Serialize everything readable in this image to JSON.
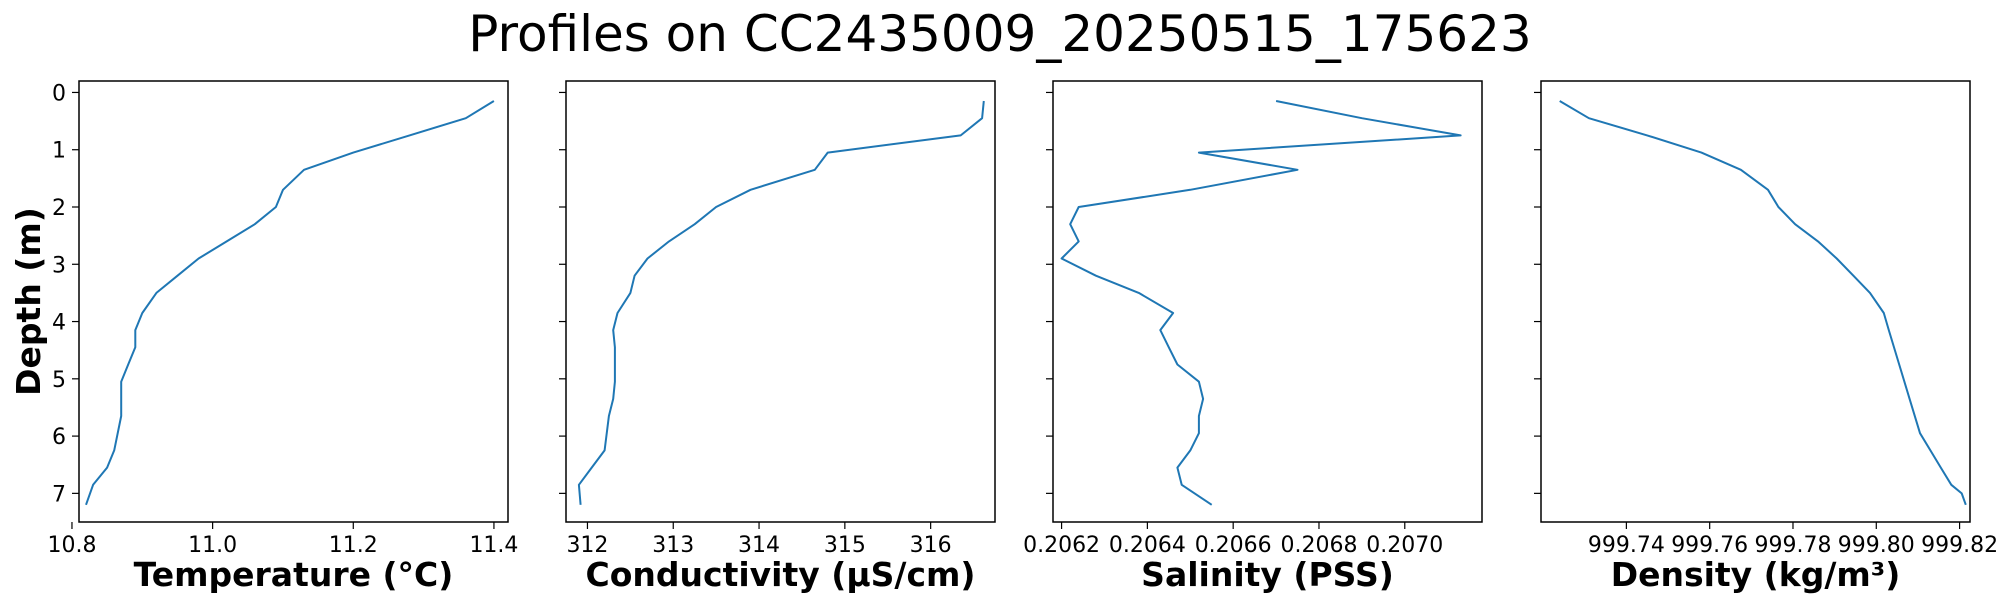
{
  "title": "Profiles on CC2435009_20250515_175623",
  "line_color": "#1f77b4",
  "chart_data": [
    {
      "type": "line",
      "xlabel": "Temperature (°C)",
      "ylabel": "Depth (m)",
      "xlim": [
        10.81,
        11.42
      ],
      "ylim": [
        7.5,
        -0.2
      ],
      "xticks": [
        "10.8",
        "11.0",
        "11.2",
        "11.4"
      ],
      "xtick_values": [
        10.8,
        11.0,
        11.2,
        11.4
      ],
      "yticks": [
        "0",
        "1",
        "2",
        "3",
        "4",
        "5",
        "6",
        "7"
      ],
      "yinvert": true,
      "series": [
        {
          "x": [
            11.4,
            11.36,
            11.28,
            11.2,
            11.13,
            11.1,
            11.09,
            11.06,
            11.02,
            10.98,
            10.95,
            10.92,
            10.9,
            10.89,
            10.89,
            10.88,
            10.87,
            10.87,
            10.86,
            10.85,
            10.83,
            10.82
          ],
          "y": [
            0.15,
            0.45,
            0.75,
            1.05,
            1.35,
            1.7,
            2.0,
            2.3,
            2.6,
            2.9,
            3.2,
            3.5,
            3.85,
            4.15,
            4.45,
            4.75,
            5.05,
            5.65,
            6.25,
            6.55,
            6.85,
            7.2
          ]
        }
      ]
    },
    {
      "type": "line",
      "xlabel": "Conductivity (µS/cm)",
      "ylabel": "",
      "xlim": [
        311.75,
        316.75
      ],
      "ylim": [
        7.5,
        -0.2
      ],
      "xticks": [
        "312",
        "313",
        "314",
        "315",
        "316"
      ],
      "xtick_values": [
        312,
        313,
        314,
        315,
        316
      ],
      "yinvert": true,
      "series": [
        {
          "x": [
            316.62,
            316.6,
            316.35,
            314.8,
            314.65,
            313.9,
            313.5,
            313.25,
            312.95,
            312.7,
            312.55,
            312.5,
            312.35,
            312.3,
            312.32,
            312.32,
            312.32,
            312.3,
            312.25,
            312.2,
            312.05,
            311.9,
            311.92
          ],
          "y": [
            0.15,
            0.45,
            0.75,
            1.05,
            1.35,
            1.7,
            2.0,
            2.3,
            2.6,
            2.9,
            3.2,
            3.5,
            3.85,
            4.15,
            4.45,
            4.75,
            5.05,
            5.35,
            5.65,
            6.25,
            6.55,
            6.85,
            7.2
          ]
        }
      ]
    },
    {
      "type": "line",
      "xlabel": "Salinity (PSS)",
      "ylabel": "",
      "xlim": [
        0.20618,
        0.20718
      ],
      "ylim": [
        7.5,
        -0.2
      ],
      "xticks": [
        "0.2062",
        "0.2064",
        "0.2066",
        "0.2068",
        "0.2070"
      ],
      "xtick_values": [
        0.2062,
        0.2064,
        0.2066,
        0.2068,
        0.207
      ],
      "yinvert": true,
      "series": [
        {
          "x": [
            0.2067,
            0.2069,
            0.20713,
            0.20652,
            0.20675,
            0.2065,
            0.20624,
            0.20622,
            0.20624,
            0.2062,
            0.20628,
            0.20638,
            0.20646,
            0.20643,
            0.20645,
            0.20647,
            0.20652,
            0.20653,
            0.20652,
            0.20652,
            0.2065,
            0.20647,
            0.20648,
            0.20655
          ],
          "y": [
            0.15,
            0.45,
            0.75,
            1.05,
            1.35,
            1.7,
            2.0,
            2.3,
            2.6,
            2.9,
            3.2,
            3.5,
            3.85,
            4.15,
            4.45,
            4.75,
            5.05,
            5.35,
            5.65,
            5.95,
            6.25,
            6.55,
            6.85,
            7.2
          ]
        }
      ]
    },
    {
      "type": "line",
      "xlabel": "Density (kg/m³)",
      "ylabel": "",
      "xlim": [
        999.7195,
        999.8225
      ],
      "ylim": [
        7.5,
        -0.2
      ],
      "xticks": [
        "999.74",
        "999.76",
        "999.78",
        "999.80",
        "999.82"
      ],
      "xtick_values": [
        999.74,
        999.76,
        999.78,
        999.8,
        999.82
      ],
      "yinvert": true,
      "series": [
        {
          "x": [
            999.724,
            999.731,
            999.745,
            999.758,
            999.7675,
            999.774,
            999.7765,
            999.7805,
            999.786,
            999.7905,
            999.7945,
            999.7985,
            999.8018,
            999.803,
            999.8055,
            999.808,
            999.8105,
            999.813,
            999.8155,
            999.818,
            999.8205,
            999.8215
          ],
          "y": [
            0.15,
            0.45,
            0.75,
            1.05,
            1.35,
            1.7,
            2.0,
            2.3,
            2.6,
            2.9,
            3.2,
            3.5,
            3.85,
            4.15,
            4.75,
            5.35,
            5.95,
            6.25,
            6.55,
            6.85,
            7.0,
            7.2
          ]
        }
      ]
    }
  ]
}
